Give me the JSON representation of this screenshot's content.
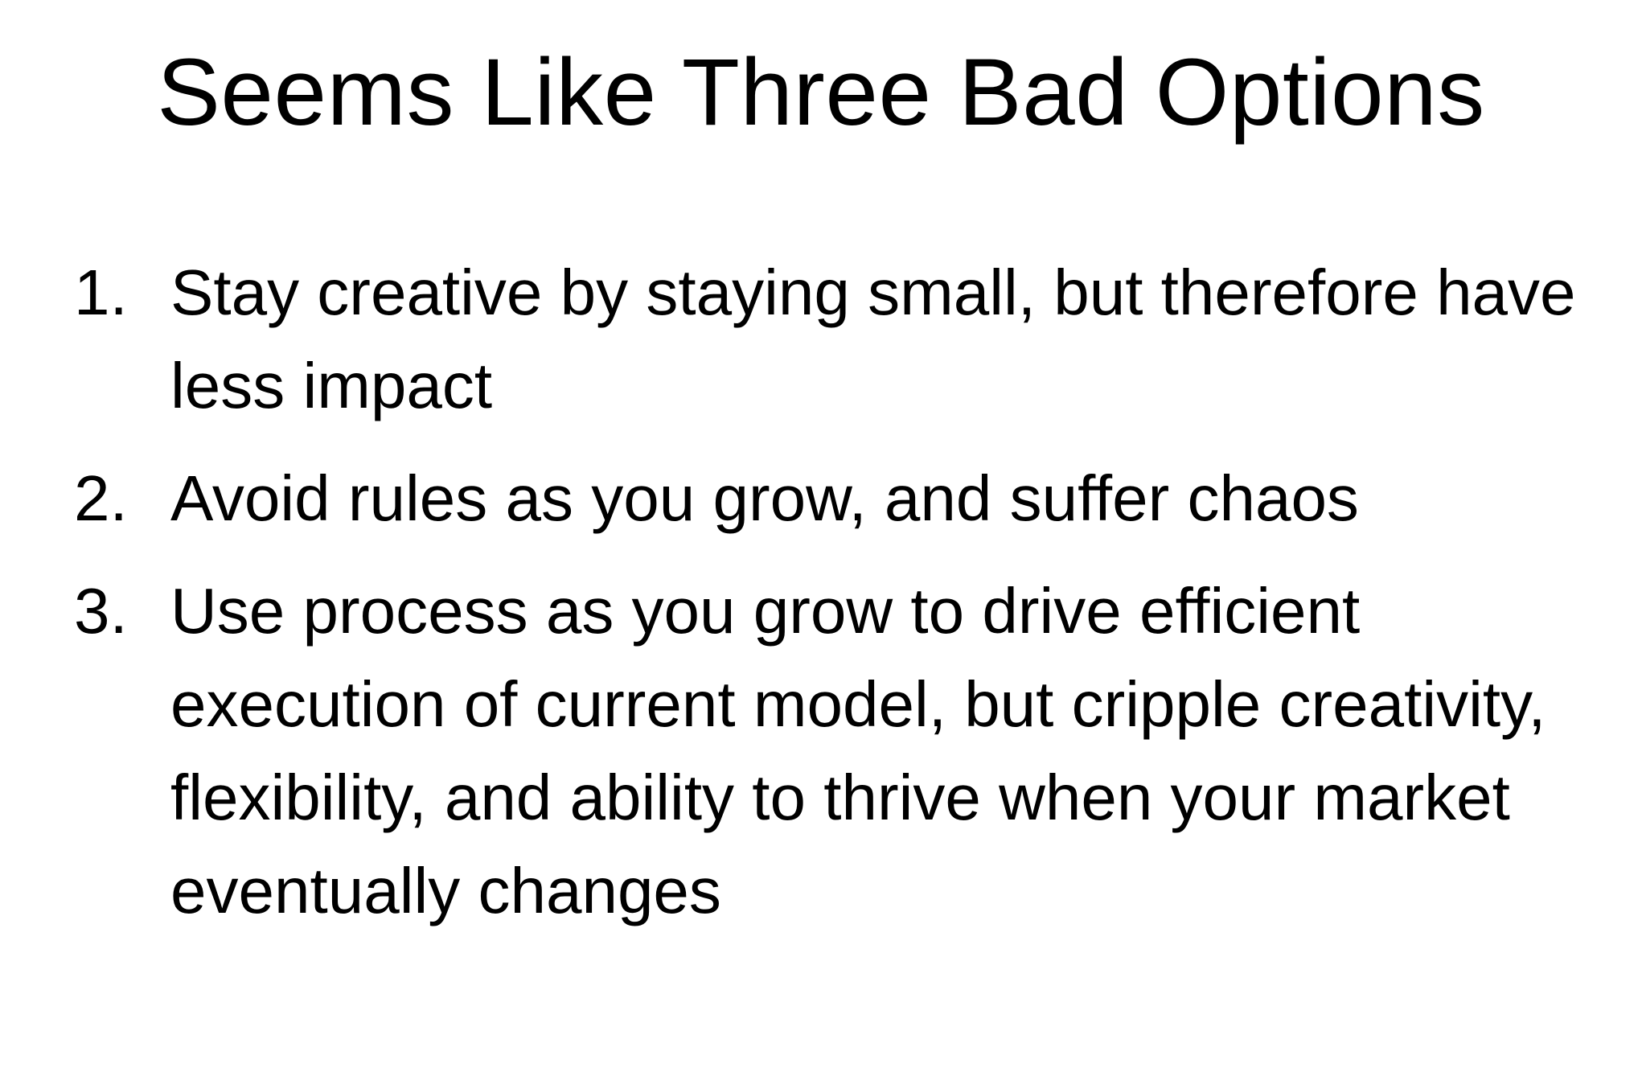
{
  "slide": {
    "title": "Seems Like Three Bad Options",
    "options": [
      {
        "number": "1.",
        "text": "Stay creative by staying small, but therefore have less impact"
      },
      {
        "number": "2.",
        "text": "Avoid rules as you grow, and suffer chaos"
      },
      {
        "number": "3.",
        "text": "Use process as you grow to drive efficient execution of current model, but cripple creativity, flexibility, and ability to thrive when your market eventually changes"
      }
    ]
  },
  "colors": {
    "background": "#ffffff",
    "text": "#000000"
  }
}
